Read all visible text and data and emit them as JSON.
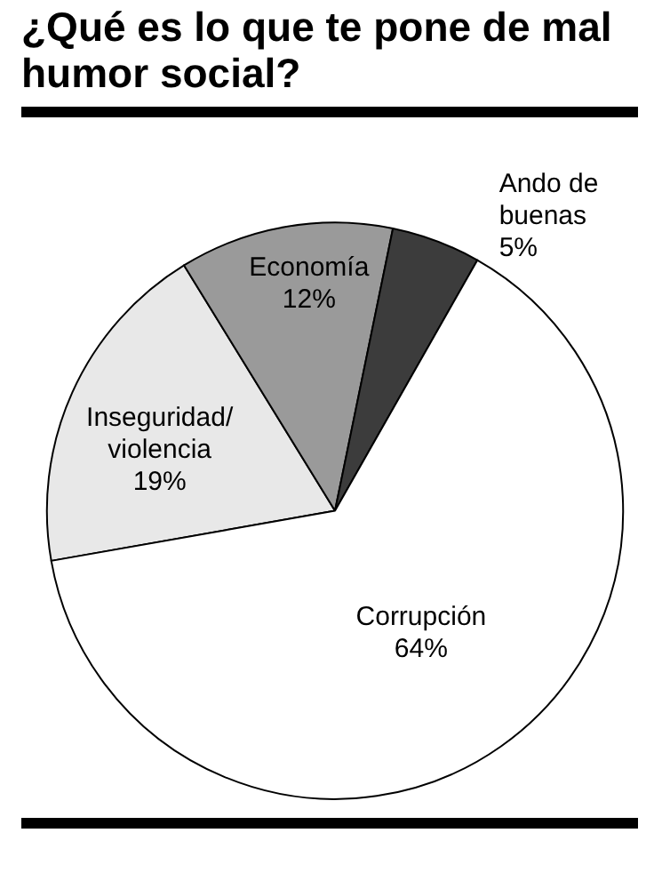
{
  "chart_data": {
    "type": "pie",
    "title": "¿Qué es lo que te pone de mal humor social?",
    "categories": [
      "Inseguridad/violencia",
      "Economía",
      "Ando de buenas",
      "Corrupción"
    ],
    "values": [
      19,
      12,
      5,
      64
    ],
    "colors": [
      "#e8e8e8",
      "#9a9a9a",
      "#3c3c3c",
      "#ffffff"
    ],
    "value_labels": [
      "19%",
      "12%",
      "5%",
      "64%"
    ],
    "data_labels": true,
    "legend": false
  }
}
